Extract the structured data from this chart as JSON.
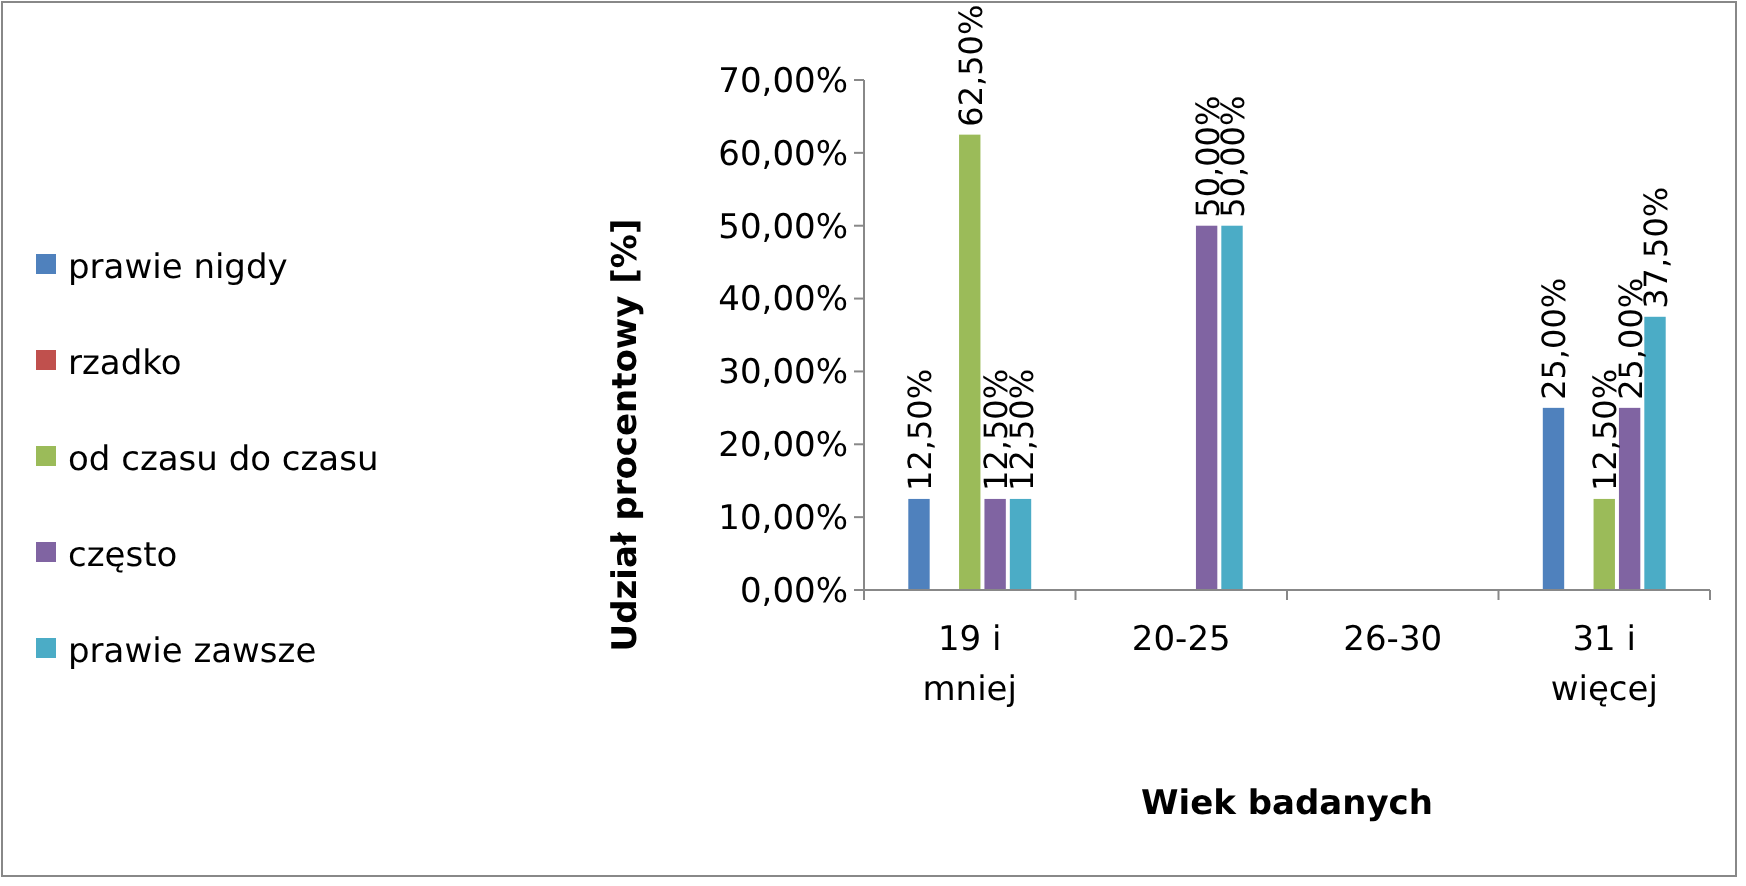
{
  "chart_data": {
    "type": "bar",
    "xlabel": "Wiek badanych",
    "ylabel": "Udział procentowy [%]",
    "categories": [
      "19 i mniej",
      "20-25",
      "26-30",
      "31 i więcej"
    ],
    "series": [
      {
        "name": "prawie nigdy",
        "color": "#4f81bd",
        "values": [
          12.5,
          0,
          0,
          25
        ],
        "value_labels": [
          "12,50%",
          null,
          null,
          "25,00%"
        ]
      },
      {
        "name": "rzadko",
        "color": "#c0504d",
        "values": [
          0,
          0,
          0,
          0
        ],
        "value_labels": [
          null,
          null,
          null,
          null
        ]
      },
      {
        "name": "od czasu do czasu",
        "color": "#9bbb59",
        "values": [
          62.5,
          0,
          0,
          12.5
        ],
        "value_labels": [
          "62,50%",
          null,
          null,
          "12,50%"
        ]
      },
      {
        "name": "często",
        "color": "#8064a2",
        "values": [
          12.5,
          50,
          0,
          25
        ],
        "value_labels": [
          "12,50%",
          "50,00%",
          null,
          "25,00%"
        ]
      },
      {
        "name": "prawie zawsze",
        "color": "#4bacc6",
        "values": [
          12.5,
          50,
          0,
          37.5
        ],
        "value_labels": [
          "12,50%",
          "50,00%",
          null,
          "37,50%"
        ]
      }
    ],
    "ylim": [
      0,
      70
    ],
    "yticks": [
      {
        "value": 0,
        "label": "0,00%"
      },
      {
        "value": 10,
        "label": "10,00%"
      },
      {
        "value": 20,
        "label": "20,00%"
      },
      {
        "value": 30,
        "label": "30,00%"
      },
      {
        "value": 40,
        "label": "40,00%"
      },
      {
        "value": 50,
        "label": "50,00%"
      },
      {
        "value": 60,
        "label": "60,00%"
      },
      {
        "value": 70,
        "label": "70,00%"
      }
    ],
    "legend": "left"
  }
}
